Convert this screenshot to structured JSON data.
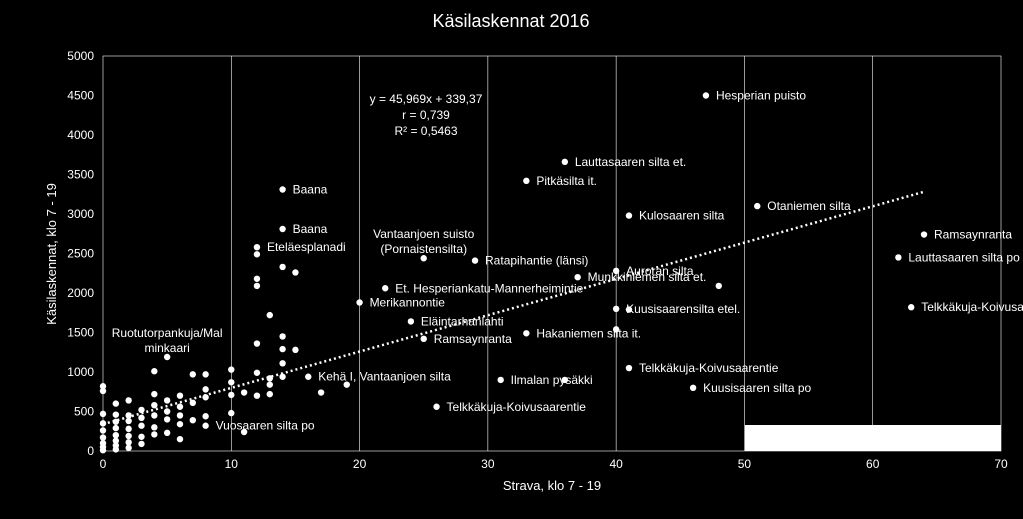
{
  "chart_data": {
    "type": "scatter",
    "title": "Käsilaskennat 2016",
    "xlabel": "Strava, klo 7 - 19",
    "ylabel": "Käsilaskennat, klo 7 - 19",
    "xlim": [
      0,
      70
    ],
    "ylim": [
      0,
      5000
    ],
    "xticks": [
      0,
      10,
      20,
      30,
      40,
      50,
      60,
      70
    ],
    "yticks": [
      0,
      500,
      1000,
      1500,
      2000,
      2500,
      3000,
      3500,
      4000,
      4500,
      5000
    ],
    "grid": "vertical",
    "colors": {
      "background": "#000000",
      "points": "#ffffff",
      "trendline": "#ffffff",
      "text": "#ffffff",
      "grid": "#ffffff"
    },
    "trendline": {
      "slope": 45.969,
      "intercept": 339.37,
      "x_range": [
        0,
        64
      ],
      "style": "dotted"
    },
    "annotation": [
      "y = 45,969x + 339,37",
      "r = 0,739",
      "R² = 0,5463"
    ],
    "points": [
      {
        "x": 47,
        "y": 4500,
        "label": "Hesperian puisto"
      },
      {
        "x": 36,
        "y": 3660,
        "label": "Lauttasaaren silta et."
      },
      {
        "x": 33,
        "y": 3420,
        "label": "Pitkäsilta it."
      },
      {
        "x": 14,
        "y": 3310,
        "label": "Baana"
      },
      {
        "x": 51,
        "y": 3100,
        "label": "Otaniemen silta"
      },
      {
        "x": 41,
        "y": 2980,
        "label": "Kulosaaren silta"
      },
      {
        "x": 14,
        "y": 2810,
        "label": "Baana"
      },
      {
        "x": 64,
        "y": 2740,
        "label": "Ramsaynranta"
      },
      {
        "x": 12,
        "y": 2580,
        "label": "Eteläesplanadi"
      },
      {
        "x": 12,
        "y": 2490,
        "label": ""
      },
      {
        "x": 25,
        "y": 2440,
        "label": "Vantaanjoen suisto\n(Pornaistensilta)"
      },
      {
        "x": 62,
        "y": 2450,
        "label": "Lauttasaaren silta po"
      },
      {
        "x": 29,
        "y": 2410,
        "label": "Ratapihantie (länsi)"
      },
      {
        "x": 14,
        "y": 2330,
        "label": ""
      },
      {
        "x": 15,
        "y": 2260,
        "label": ""
      },
      {
        "x": 40,
        "y": 2280,
        "label": "Auroran silta"
      },
      {
        "x": 37,
        "y": 2200,
        "label": "Munkkiniemen silta et."
      },
      {
        "x": 12,
        "y": 2180,
        "label": ""
      },
      {
        "x": 12,
        "y": 2090,
        "label": ""
      },
      {
        "x": 48,
        "y": 2090,
        "label": ""
      },
      {
        "x": 22,
        "y": 2060,
        "label": "Et. Hesperiankatu-Mannerheimintie"
      },
      {
        "x": 20,
        "y": 1880,
        "label": "Merikannontie"
      },
      {
        "x": 63,
        "y": 1820,
        "label": "Telkkäkuja-Koivusaarentie"
      },
      {
        "x": 40,
        "y": 1800,
        "label": "Kuusisaarensilta etel."
      },
      {
        "x": 41,
        "y": 1790,
        "label": ""
      },
      {
        "x": 13,
        "y": 1720,
        "label": ""
      },
      {
        "x": 24,
        "y": 1640,
        "label": "Eläintarhanlahti"
      },
      {
        "x": 40,
        "y": 1540,
        "label": ""
      },
      {
        "x": 33,
        "y": 1490,
        "label": "Hakaniemen silta it."
      },
      {
        "x": 14,
        "y": 1450,
        "label": ""
      },
      {
        "x": 25,
        "y": 1420,
        "label": "Ramsaynranta"
      },
      {
        "x": 12,
        "y": 1360,
        "label": ""
      },
      {
        "x": 14,
        "y": 1290,
        "label": ""
      },
      {
        "x": 15,
        "y": 1280,
        "label": ""
      },
      {
        "x": 5,
        "y": 1190,
        "label": "Ruotutorpankuja/Mal\nminkaari"
      },
      {
        "x": 14,
        "y": 1110,
        "label": ""
      },
      {
        "x": 41,
        "y": 1050,
        "label": "Telkkäkuja-Koivusaarentie"
      },
      {
        "x": 10,
        "y": 1030,
        "label": ""
      },
      {
        "x": 4,
        "y": 1010,
        "label": ""
      },
      {
        "x": 12,
        "y": 990,
        "label": ""
      },
      {
        "x": 7,
        "y": 970,
        "label": ""
      },
      {
        "x": 8,
        "y": 970,
        "label": ""
      },
      {
        "x": 16,
        "y": 940,
        "label": "Kehä I, Vantaanjoen silta"
      },
      {
        "x": 13,
        "y": 920,
        "label": ""
      },
      {
        "x": 14,
        "y": 940,
        "label": ""
      },
      {
        "x": 31,
        "y": 900,
        "label": "Ilmalan pysäkki"
      },
      {
        "x": 36,
        "y": 900,
        "label": ""
      },
      {
        "x": 10,
        "y": 870,
        "label": ""
      },
      {
        "x": 13,
        "y": 840,
        "label": ""
      },
      {
        "x": 19,
        "y": 840,
        "label": ""
      },
      {
        "x": 0,
        "y": 820,
        "label": ""
      },
      {
        "x": 46,
        "y": 800,
        "label": "Kuusisaaren silta po"
      },
      {
        "x": 8,
        "y": 780,
        "label": ""
      },
      {
        "x": 0,
        "y": 760,
        "label": ""
      },
      {
        "x": 17,
        "y": 740,
        "label": ""
      },
      {
        "x": 11,
        "y": 740,
        "label": ""
      },
      {
        "x": 4,
        "y": 720,
        "label": ""
      },
      {
        "x": 10,
        "y": 710,
        "label": ""
      },
      {
        "x": 6,
        "y": 700,
        "label": ""
      },
      {
        "x": 12,
        "y": 700,
        "label": ""
      },
      {
        "x": 13,
        "y": 720,
        "label": ""
      },
      {
        "x": 8,
        "y": 680,
        "label": ""
      },
      {
        "x": 2,
        "y": 640,
        "label": ""
      },
      {
        "x": 5,
        "y": 640,
        "label": ""
      },
      {
        "x": 7,
        "y": 610,
        "label": ""
      },
      {
        "x": 1,
        "y": 600,
        "label": ""
      },
      {
        "x": 4,
        "y": 580,
        "label": ""
      },
      {
        "x": 6,
        "y": 560,
        "label": ""
      },
      {
        "x": 26,
        "y": 560,
        "label": "Telkkäkuja-Koivusaarentie"
      },
      {
        "x": 3,
        "y": 520,
        "label": ""
      },
      {
        "x": 5,
        "y": 500,
        "label": ""
      },
      {
        "x": 10,
        "y": 480,
        "label": ""
      },
      {
        "x": 0,
        "y": 470,
        "label": ""
      },
      {
        "x": 1,
        "y": 460,
        "label": ""
      },
      {
        "x": 2,
        "y": 450,
        "label": ""
      },
      {
        "x": 4,
        "y": 450,
        "label": ""
      },
      {
        "x": 6,
        "y": 450,
        "label": ""
      },
      {
        "x": 8,
        "y": 440,
        "label": ""
      },
      {
        "x": 3,
        "y": 420,
        "label": ""
      },
      {
        "x": 5,
        "y": 400,
        "label": ""
      },
      {
        "x": 7,
        "y": 390,
        "label": ""
      },
      {
        "x": 2,
        "y": 380,
        "label": ""
      },
      {
        "x": 1,
        "y": 370,
        "label": ""
      },
      {
        "x": 0,
        "y": 350,
        "label": ""
      },
      {
        "x": 6,
        "y": 340,
        "label": ""
      },
      {
        "x": 8,
        "y": 320,
        "label": "Vuosaaren silta po"
      },
      {
        "x": 3,
        "y": 320,
        "label": ""
      },
      {
        "x": 4,
        "y": 300,
        "label": ""
      },
      {
        "x": 1,
        "y": 290,
        "label": ""
      },
      {
        "x": 2,
        "y": 280,
        "label": ""
      },
      {
        "x": 0,
        "y": 260,
        "label": ""
      },
      {
        "x": 11,
        "y": 240,
        "label": ""
      },
      {
        "x": 5,
        "y": 230,
        "label": ""
      },
      {
        "x": 4,
        "y": 210,
        "label": ""
      },
      {
        "x": 1,
        "y": 200,
        "label": ""
      },
      {
        "x": 2,
        "y": 190,
        "label": ""
      },
      {
        "x": 3,
        "y": 180,
        "label": ""
      },
      {
        "x": 0,
        "y": 170,
        "label": ""
      },
      {
        "x": 6,
        "y": 150,
        "label": ""
      },
      {
        "x": 1,
        "y": 130,
        "label": ""
      },
      {
        "x": 2,
        "y": 110,
        "label": ""
      },
      {
        "x": 0,
        "y": 100,
        "label": ""
      },
      {
        "x": 3,
        "y": 90,
        "label": ""
      },
      {
        "x": 1,
        "y": 70,
        "label": ""
      },
      {
        "x": 0,
        "y": 50,
        "label": ""
      },
      {
        "x": 2,
        "y": 40,
        "label": ""
      },
      {
        "x": 1,
        "y": 20,
        "label": ""
      },
      {
        "x": 0,
        "y": 10,
        "label": ""
      }
    ]
  }
}
